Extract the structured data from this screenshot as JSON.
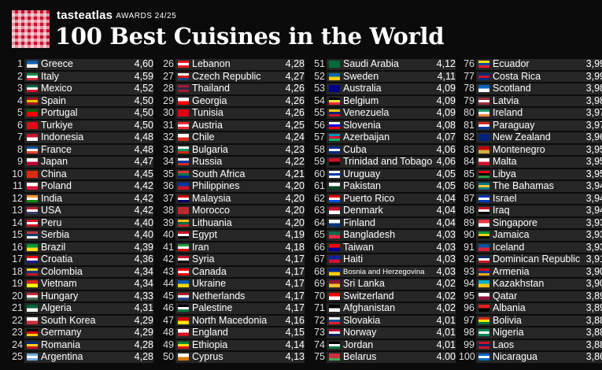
{
  "brand": {
    "name": "tasteatlas",
    "awards": "AWARDS 24/25"
  },
  "title": "100 Best Cuisines in the World",
  "entries": [
    {
      "rank": "1",
      "name": "Greece",
      "score": "4,60",
      "flag": [
        "#0d5eaf",
        "#ffffff"
      ]
    },
    {
      "rank": "2",
      "name": "Italy",
      "score": "4,59",
      "flag": [
        "#009246",
        "#ffffff",
        "#ce2b37"
      ]
    },
    {
      "rank": "3",
      "name": "Mexico",
      "score": "4,52",
      "flag": [
        "#006847",
        "#ffffff",
        "#ce1126"
      ]
    },
    {
      "rank": "4",
      "name": "Spain",
      "score": "4,50",
      "flag": [
        "#aa151b",
        "#f1bf00",
        "#aa151b"
      ]
    },
    {
      "rank": "5",
      "name": "Portugal",
      "score": "4,50",
      "flag": [
        "#006600",
        "#ff0000",
        "#ff0000"
      ]
    },
    {
      "rank": "6",
      "name": "Turkiye",
      "score": "4,50",
      "flag": [
        "#e30a17",
        "#e30a17"
      ]
    },
    {
      "rank": "7",
      "name": "Indonesia",
      "score": "4,48",
      "flag": [
        "#ce1126",
        "#ffffff"
      ]
    },
    {
      "rank": "8",
      "name": "France",
      "score": "4,48",
      "flag": [
        "#0055a4",
        "#ffffff",
        "#ef4135"
      ]
    },
    {
      "rank": "9",
      "name": "Japan",
      "score": "4,47",
      "flag": [
        "#ffffff",
        "#bc002d"
      ]
    },
    {
      "rank": "10",
      "name": "China",
      "score": "4,45",
      "flag": [
        "#de2910",
        "#de2910"
      ]
    },
    {
      "rank": "11",
      "name": "Poland",
      "score": "4,42",
      "flag": [
        "#ffffff",
        "#dc143c"
      ]
    },
    {
      "rank": "12",
      "name": "India",
      "score": "4,42",
      "flag": [
        "#ff9933",
        "#ffffff",
        "#138808"
      ]
    },
    {
      "rank": "13",
      "name": "USA",
      "score": "4,42",
      "flag": [
        "#b22234",
        "#ffffff",
        "#3c3b6e"
      ]
    },
    {
      "rank": "14",
      "name": "Peru",
      "score": "4,40",
      "flag": [
        "#d91023",
        "#ffffff",
        "#d91023"
      ]
    },
    {
      "rank": "15",
      "name": "Serbia",
      "score": "4,40",
      "flag": [
        "#c6363c",
        "#0c4076",
        "#ffffff"
      ]
    },
    {
      "rank": "16",
      "name": "Brazil",
      "score": "4,39",
      "flag": [
        "#009c3b",
        "#ffdf00"
      ]
    },
    {
      "rank": "17",
      "name": "Croatia",
      "score": "4,36",
      "flag": [
        "#ff0000",
        "#ffffff",
        "#171796"
      ]
    },
    {
      "rank": "18",
      "name": "Colombia",
      "score": "4,34",
      "flag": [
        "#fcd116",
        "#003893",
        "#ce1126"
      ]
    },
    {
      "rank": "19",
      "name": "Vietnam",
      "score": "4,34",
      "flag": [
        "#da251d",
        "#ffff00"
      ]
    },
    {
      "rank": "20",
      "name": "Hungary",
      "score": "4,33",
      "flag": [
        "#ce2939",
        "#ffffff",
        "#477050"
      ]
    },
    {
      "rank": "21",
      "name": "Algeria",
      "score": "4,31",
      "flag": [
        "#006233",
        "#ffffff"
      ]
    },
    {
      "rank": "22",
      "name": "South Korea",
      "score": "4,29",
      "flag": [
        "#ffffff",
        "#cd2e3a"
      ]
    },
    {
      "rank": "23",
      "name": "Germany",
      "score": "4,29",
      "flag": [
        "#000000",
        "#dd0000",
        "#ffce00"
      ]
    },
    {
      "rank": "24",
      "name": "Romania",
      "score": "4,28",
      "flag": [
        "#002b7f",
        "#fcd116",
        "#ce1126"
      ]
    },
    {
      "rank": "25",
      "name": "Argentina",
      "score": "4,28",
      "flag": [
        "#74acdf",
        "#ffffff",
        "#74acdf"
      ]
    },
    {
      "rank": "26",
      "name": "Lebanon",
      "score": "4,28",
      "flag": [
        "#ee161f",
        "#ffffff",
        "#ee161f"
      ]
    },
    {
      "rank": "27",
      "name": "Czech Republic",
      "score": "4,27",
      "flag": [
        "#ffffff",
        "#d7141a",
        "#11457e"
      ]
    },
    {
      "rank": "28",
      "name": "Thailand",
      "score": "4,26",
      "flag": [
        "#a51931",
        "#2d2a4a",
        "#a51931"
      ]
    },
    {
      "rank": "29",
      "name": "Georgia",
      "score": "4,26",
      "flag": [
        "#ffffff",
        "#ff0000"
      ]
    },
    {
      "rank": "30",
      "name": "Tunisia",
      "score": "4,26",
      "flag": [
        "#e70013",
        "#e70013"
      ]
    },
    {
      "rank": "31",
      "name": "Austria",
      "score": "4,25",
      "flag": [
        "#ed2939",
        "#ffffff",
        "#ed2939"
      ]
    },
    {
      "rank": "32",
      "name": "Chile",
      "score": "4,24",
      "flag": [
        "#ffffff",
        "#d52b1e"
      ]
    },
    {
      "rank": "33",
      "name": "Bulgaria",
      "score": "4,23",
      "flag": [
        "#ffffff",
        "#00966e",
        "#d62612"
      ]
    },
    {
      "rank": "34",
      "name": "Russia",
      "score": "4,22",
      "flag": [
        "#ffffff",
        "#0039a6",
        "#d52b1e"
      ]
    },
    {
      "rank": "35",
      "name": "South Africa",
      "score": "4,21",
      "flag": [
        "#de3831",
        "#007a4d",
        "#002395"
      ]
    },
    {
      "rank": "36",
      "name": "Philippines",
      "score": "4,20",
      "flag": [
        "#0038a8",
        "#ce1126"
      ]
    },
    {
      "rank": "37",
      "name": "Malaysia",
      "score": "4,20",
      "flag": [
        "#cc0001",
        "#ffffff",
        "#010066"
      ]
    },
    {
      "rank": "38",
      "name": "Morocco",
      "score": "4,20",
      "flag": [
        "#c1272d",
        "#c1272d"
      ]
    },
    {
      "rank": "39",
      "name": "Lithuania",
      "score": "4,20",
      "flag": [
        "#fdb913",
        "#006a44",
        "#c1272d"
      ]
    },
    {
      "rank": "40",
      "name": "Egypt",
      "score": "4,19",
      "flag": [
        "#ce1126",
        "#ffffff",
        "#000000"
      ]
    },
    {
      "rank": "41",
      "name": "Iran",
      "score": "4,18",
      "flag": [
        "#239f40",
        "#ffffff",
        "#da0000"
      ]
    },
    {
      "rank": "42",
      "name": "Syria",
      "score": "4,17",
      "flag": [
        "#ce1126",
        "#ffffff",
        "#000000"
      ]
    },
    {
      "rank": "43",
      "name": "Canada",
      "score": "4,17",
      "flag": [
        "#ff0000",
        "#ffffff",
        "#ff0000"
      ]
    },
    {
      "rank": "44",
      "name": "Ukraine",
      "score": "4,17",
      "flag": [
        "#0057b7",
        "#ffd700"
      ]
    },
    {
      "rank": "45",
      "name": "Netherlands",
      "score": "4,17",
      "flag": [
        "#ae1c28",
        "#ffffff",
        "#21468b"
      ]
    },
    {
      "rank": "46",
      "name": "Palestine",
      "score": "4,17",
      "flag": [
        "#000000",
        "#ffffff",
        "#007a3d"
      ]
    },
    {
      "rank": "47",
      "name": "North Macedonia",
      "score": "4,16",
      "flag": [
        "#d20000",
        "#ffe600"
      ]
    },
    {
      "rank": "48",
      "name": "England",
      "score": "4,15",
      "flag": [
        "#ffffff",
        "#ce1124"
      ]
    },
    {
      "rank": "49",
      "name": "Ethiopia",
      "score": "4,14",
      "flag": [
        "#078930",
        "#fcdd09",
        "#da121a"
      ]
    },
    {
      "rank": "50",
      "name": "Cyprus",
      "score": "4,13",
      "flag": [
        "#ffffff",
        "#d57800"
      ]
    },
    {
      "rank": "51",
      "name": "Saudi Arabia",
      "score": "4,12",
      "flag": [
        "#006c35",
        "#006c35"
      ]
    },
    {
      "rank": "52",
      "name": "Sweden",
      "score": "4,11",
      "flag": [
        "#006aa7",
        "#fecc00"
      ]
    },
    {
      "rank": "53",
      "name": "Australia",
      "score": "4,09",
      "flag": [
        "#00008b",
        "#00008b"
      ]
    },
    {
      "rank": "54",
      "name": "Belgium",
      "score": "4,09",
      "flag": [
        "#000000",
        "#fae042",
        "#ed2939"
      ]
    },
    {
      "rank": "55",
      "name": "Venezuela",
      "score": "4,09",
      "flag": [
        "#ffcc00",
        "#00247d",
        "#cf142b"
      ]
    },
    {
      "rank": "56",
      "name": "Slovenia",
      "score": "4,08",
      "flag": [
        "#ffffff",
        "#0000ff",
        "#ff0000"
      ]
    },
    {
      "rank": "57",
      "name": "Azerbaijan",
      "score": "4,07",
      "flag": [
        "#0092bc",
        "#e4002b",
        "#00af66"
      ]
    },
    {
      "rank": "58",
      "name": "Cuba",
      "score": "4,06",
      "flag": [
        "#002a8f",
        "#ffffff",
        "#002a8f"
      ]
    },
    {
      "rank": "59",
      "name": "Trinidad and Tobago",
      "score": "4,06",
      "flag": [
        "#ce1126",
        "#000000"
      ]
    },
    {
      "rank": "60",
      "name": "Uruguay",
      "score": "4,05",
      "flag": [
        "#ffffff",
        "#0038a8",
        "#ffffff"
      ]
    },
    {
      "rank": "61",
      "name": "Pakistan",
      "score": "4,05",
      "flag": [
        "#ffffff",
        "#01411c"
      ]
    },
    {
      "rank": "62",
      "name": "Puerto Rico",
      "score": "4,04",
      "flag": [
        "#ed0000",
        "#ffffff",
        "#0050f0"
      ]
    },
    {
      "rank": "63",
      "name": "Denmark",
      "score": "4,04",
      "flag": [
        "#c8102e",
        "#ffffff"
      ]
    },
    {
      "rank": "64",
      "name": "Finland",
      "score": "4,04",
      "flag": [
        "#ffffff",
        "#003580"
      ]
    },
    {
      "rank": "65",
      "name": "Bangladesh",
      "score": "4,03",
      "flag": [
        "#006a4e",
        "#f42a41"
      ]
    },
    {
      "rank": "66",
      "name": "Taiwan",
      "score": "4,03",
      "flag": [
        "#fe0000",
        "#000095"
      ]
    },
    {
      "rank": "67",
      "name": "Haiti",
      "score": "4,03",
      "flag": [
        "#00209f",
        "#d21034"
      ]
    },
    {
      "rank": "68",
      "name": "Bosnia and Herzegovina",
      "score": "4,03",
      "flag": [
        "#002395",
        "#fecb00"
      ]
    },
    {
      "rank": "69",
      "name": "Sri Lanka",
      "score": "4,02",
      "flag": [
        "#8d153a",
        "#ffbe29"
      ]
    },
    {
      "rank": "70",
      "name": "Switzerland",
      "score": "4,02",
      "flag": [
        "#ff0000",
        "#ffffff"
      ]
    },
    {
      "rank": "71",
      "name": "Afghanistan",
      "score": "4,02",
      "flag": [
        "#000000",
        "#ffffff"
      ]
    },
    {
      "rank": "72",
      "name": "Slovakia",
      "score": "4,01",
      "flag": [
        "#ffffff",
        "#0b4ea2",
        "#ee1c25"
      ]
    },
    {
      "rank": "73",
      "name": "Norway",
      "score": "4,01",
      "flag": [
        "#ba0c2f",
        "#ffffff",
        "#00205b"
      ]
    },
    {
      "rank": "74",
      "name": "Jordan",
      "score": "4,01",
      "flag": [
        "#000000",
        "#ffffff",
        "#007a3d"
      ]
    },
    {
      "rank": "75",
      "name": "Belarus",
      "score": "4.00",
      "flag": [
        "#c8313e",
        "#c8313e",
        "#4aa657"
      ]
    },
    {
      "rank": "76",
      "name": "Ecuador",
      "score": "3,99",
      "flag": [
        "#ffdd00",
        "#034ea2",
        "#ed1c24"
      ]
    },
    {
      "rank": "77",
      "name": "Costa Rica",
      "score": "3,99",
      "flag": [
        "#002b7f",
        "#ce1126",
        "#002b7f"
      ]
    },
    {
      "rank": "78",
      "name": "Scotland",
      "score": "3,98",
      "flag": [
        "#0065bd",
        "#ffffff"
      ]
    },
    {
      "rank": "79",
      "name": "Latvia",
      "score": "3,98",
      "flag": [
        "#9e3039",
        "#ffffff",
        "#9e3039"
      ]
    },
    {
      "rank": "80",
      "name": "Ireland",
      "score": "3,97",
      "flag": [
        "#169b62",
        "#ffffff",
        "#ff883e"
      ]
    },
    {
      "rank": "81",
      "name": "Paraguay",
      "score": "3,97",
      "flag": [
        "#d52b1e",
        "#ffffff",
        "#0038a8"
      ]
    },
    {
      "rank": "82",
      "name": "New Zealand",
      "score": "3,96",
      "flag": [
        "#00247d",
        "#00247d"
      ]
    },
    {
      "rank": "83",
      "name": "Montenegro",
      "score": "3,95",
      "flag": [
        "#c40308",
        "#d4af3a"
      ]
    },
    {
      "rank": "84",
      "name": "Malta",
      "score": "3,95",
      "flag": [
        "#ffffff",
        "#cf142b"
      ]
    },
    {
      "rank": "85",
      "name": "Libya",
      "score": "3,95",
      "flag": [
        "#e70013",
        "#000000",
        "#239e46"
      ]
    },
    {
      "rank": "86",
      "name": "The Bahamas",
      "score": "3,94",
      "flag": [
        "#00778b",
        "#ffc72c",
        "#00778b"
      ]
    },
    {
      "rank": "87",
      "name": "Israel",
      "score": "3,94",
      "flag": [
        "#0038b8",
        "#ffffff",
        "#0038b8"
      ]
    },
    {
      "rank": "88",
      "name": "Iraq",
      "score": "3,94",
      "flag": [
        "#ce1126",
        "#ffffff",
        "#000000"
      ]
    },
    {
      "rank": "89",
      "name": "Singapore",
      "score": "3,93",
      "flag": [
        "#ef3340",
        "#ffffff"
      ]
    },
    {
      "rank": "90",
      "name": "Jamaica",
      "score": "3,93",
      "flag": [
        "#009b3a",
        "#fed100",
        "#000000"
      ]
    },
    {
      "rank": "91",
      "name": "Iceland",
      "score": "3,93",
      "flag": [
        "#02529c",
        "#dc1e35"
      ]
    },
    {
      "rank": "92",
      "name": "Dominican Republic",
      "score": "3,91",
      "flag": [
        "#002d62",
        "#ffffff",
        "#ce1126"
      ]
    },
    {
      "rank": "93",
      "name": "Armenia",
      "score": "3,90",
      "flag": [
        "#d90012",
        "#0033a0",
        "#f2a800"
      ]
    },
    {
      "rank": "94",
      "name": "Kazakhstan",
      "score": "3,90",
      "flag": [
        "#00afca",
        "#fec50c"
      ]
    },
    {
      "rank": "95",
      "name": "Qatar",
      "score": "3,89",
      "flag": [
        "#ffffff",
        "#8a1538"
      ]
    },
    {
      "rank": "96",
      "name": "Albania",
      "score": "3,89",
      "flag": [
        "#e41e20",
        "#000000"
      ]
    },
    {
      "rank": "97",
      "name": "Bolivia",
      "score": "3,88",
      "flag": [
        "#d52b1e",
        "#f9e300",
        "#007934"
      ]
    },
    {
      "rank": "98",
      "name": "Nigeria",
      "score": "3,88",
      "flag": [
        "#008751",
        "#ffffff",
        "#008751"
      ]
    },
    {
      "rank": "99",
      "name": "Laos",
      "score": "3,88",
      "flag": [
        "#ce1126",
        "#002868",
        "#ce1126"
      ]
    },
    {
      "rank": "100",
      "name": "Nicaragua",
      "score": "3,86",
      "flag": [
        "#0067c6",
        "#ffffff",
        "#0067c6"
      ]
    }
  ]
}
